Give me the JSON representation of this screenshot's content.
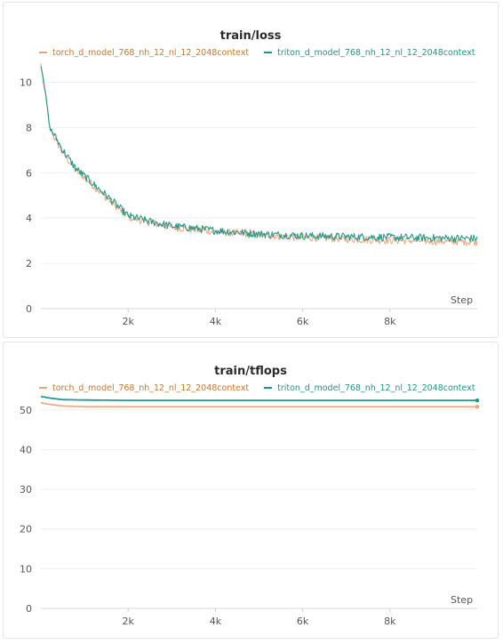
{
  "chart_data": [
    {
      "type": "line",
      "title": "train/loss",
      "xlabel": "Step",
      "ylabel": "",
      "xlim": [
        0,
        10000
      ],
      "ylim": [
        0,
        11
      ],
      "xticks": [
        2000,
        4000,
        6000,
        8000
      ],
      "xtick_labels": [
        "2k",
        "4k",
        "6k",
        "8k"
      ],
      "yticks": [
        0,
        2,
        4,
        6,
        8,
        10
      ],
      "ytick_labels": [
        "0",
        "2",
        "4",
        "6",
        "8",
        "10"
      ],
      "grid": true,
      "legend_position": "top",
      "series": [
        {
          "name": "torch_d_model_768_nh_12_nl_12_2048context",
          "color": "#e8a578",
          "x": [
            0,
            100,
            200,
            300,
            500,
            800,
            1000,
            1500,
            2000,
            2500,
            3000,
            4000,
            5000,
            6000,
            7000,
            8000,
            9000,
            10000
          ],
          "y": [
            10.8,
            9.6,
            8.0,
            7.6,
            6.9,
            6.1,
            5.8,
            4.9,
            4.05,
            3.8,
            3.6,
            3.4,
            3.25,
            3.15,
            3.08,
            3.02,
            2.98,
            2.95
          ]
        },
        {
          "name": "triton_d_model_768_nh_12_nl_12_2048context",
          "color": "#1f9486",
          "x": [
            0,
            100,
            200,
            300,
            500,
            800,
            1000,
            1500,
            2000,
            2500,
            3000,
            4000,
            5000,
            6000,
            7000,
            8000,
            9000,
            10000
          ],
          "y": [
            10.8,
            9.6,
            8.0,
            7.7,
            7.0,
            6.2,
            5.85,
            5.0,
            4.1,
            3.85,
            3.65,
            3.45,
            3.3,
            3.22,
            3.18,
            3.15,
            3.12,
            3.1
          ]
        }
      ]
    },
    {
      "type": "line",
      "title": "train/tflops",
      "xlabel": "Step",
      "ylabel": "",
      "xlim": [
        0,
        10000
      ],
      "ylim": [
        0,
        54
      ],
      "xticks": [
        2000,
        4000,
        6000,
        8000
      ],
      "xtick_labels": [
        "2k",
        "4k",
        "6k",
        "8k"
      ],
      "yticks": [
        0,
        10,
        20,
        30,
        40,
        50
      ],
      "ytick_labels": [
        "0",
        "10",
        "20",
        "30",
        "40",
        "50"
      ],
      "grid": true,
      "legend_position": "top",
      "series": [
        {
          "name": "torch_d_model_768_nh_12_nl_12_2048context",
          "color": "#e8a578",
          "x": [
            0,
            200,
            500,
            1000,
            2000,
            4000,
            6000,
            8000,
            10000
          ],
          "y": [
            51.8,
            51.4,
            51.0,
            50.8,
            50.8,
            50.8,
            50.8,
            50.8,
            50.8
          ],
          "marker_last": true
        },
        {
          "name": "triton_d_model_768_nh_12_nl_12_2048context",
          "color": "#1f9486",
          "x": [
            0,
            200,
            500,
            1000,
            2000,
            4000,
            6000,
            8000,
            10000
          ],
          "y": [
            53.4,
            53.0,
            52.6,
            52.5,
            52.4,
            52.4,
            52.4,
            52.4,
            52.4
          ],
          "marker_last": true
        }
      ]
    }
  ]
}
